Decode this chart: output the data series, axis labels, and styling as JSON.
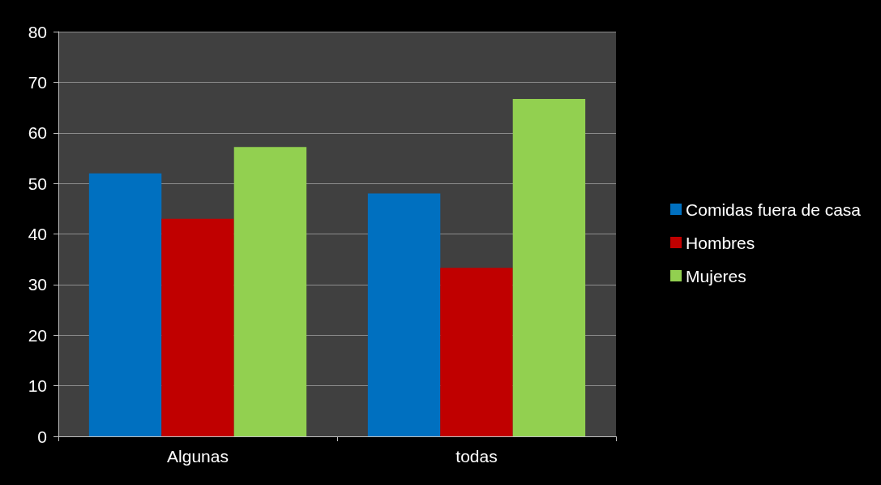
{
  "chart_data": {
    "type": "bar",
    "categories": [
      "Algunas",
      "todas"
    ],
    "series": [
      {
        "name": "Comidas fuera de casa",
        "color": "#0070c0",
        "values": [
          52,
          48
        ]
      },
      {
        "name": "Hombres",
        "color": "#c00000",
        "values": [
          43,
          33.3
        ]
      },
      {
        "name": "Mujeres",
        "color": "#92d050",
        "values": [
          57.2,
          66.7
        ]
      }
    ],
    "ylim": [
      0,
      80
    ],
    "yticks": [
      0,
      10,
      20,
      30,
      40,
      50,
      60,
      70,
      80
    ],
    "grid": "y",
    "legend": "right"
  }
}
